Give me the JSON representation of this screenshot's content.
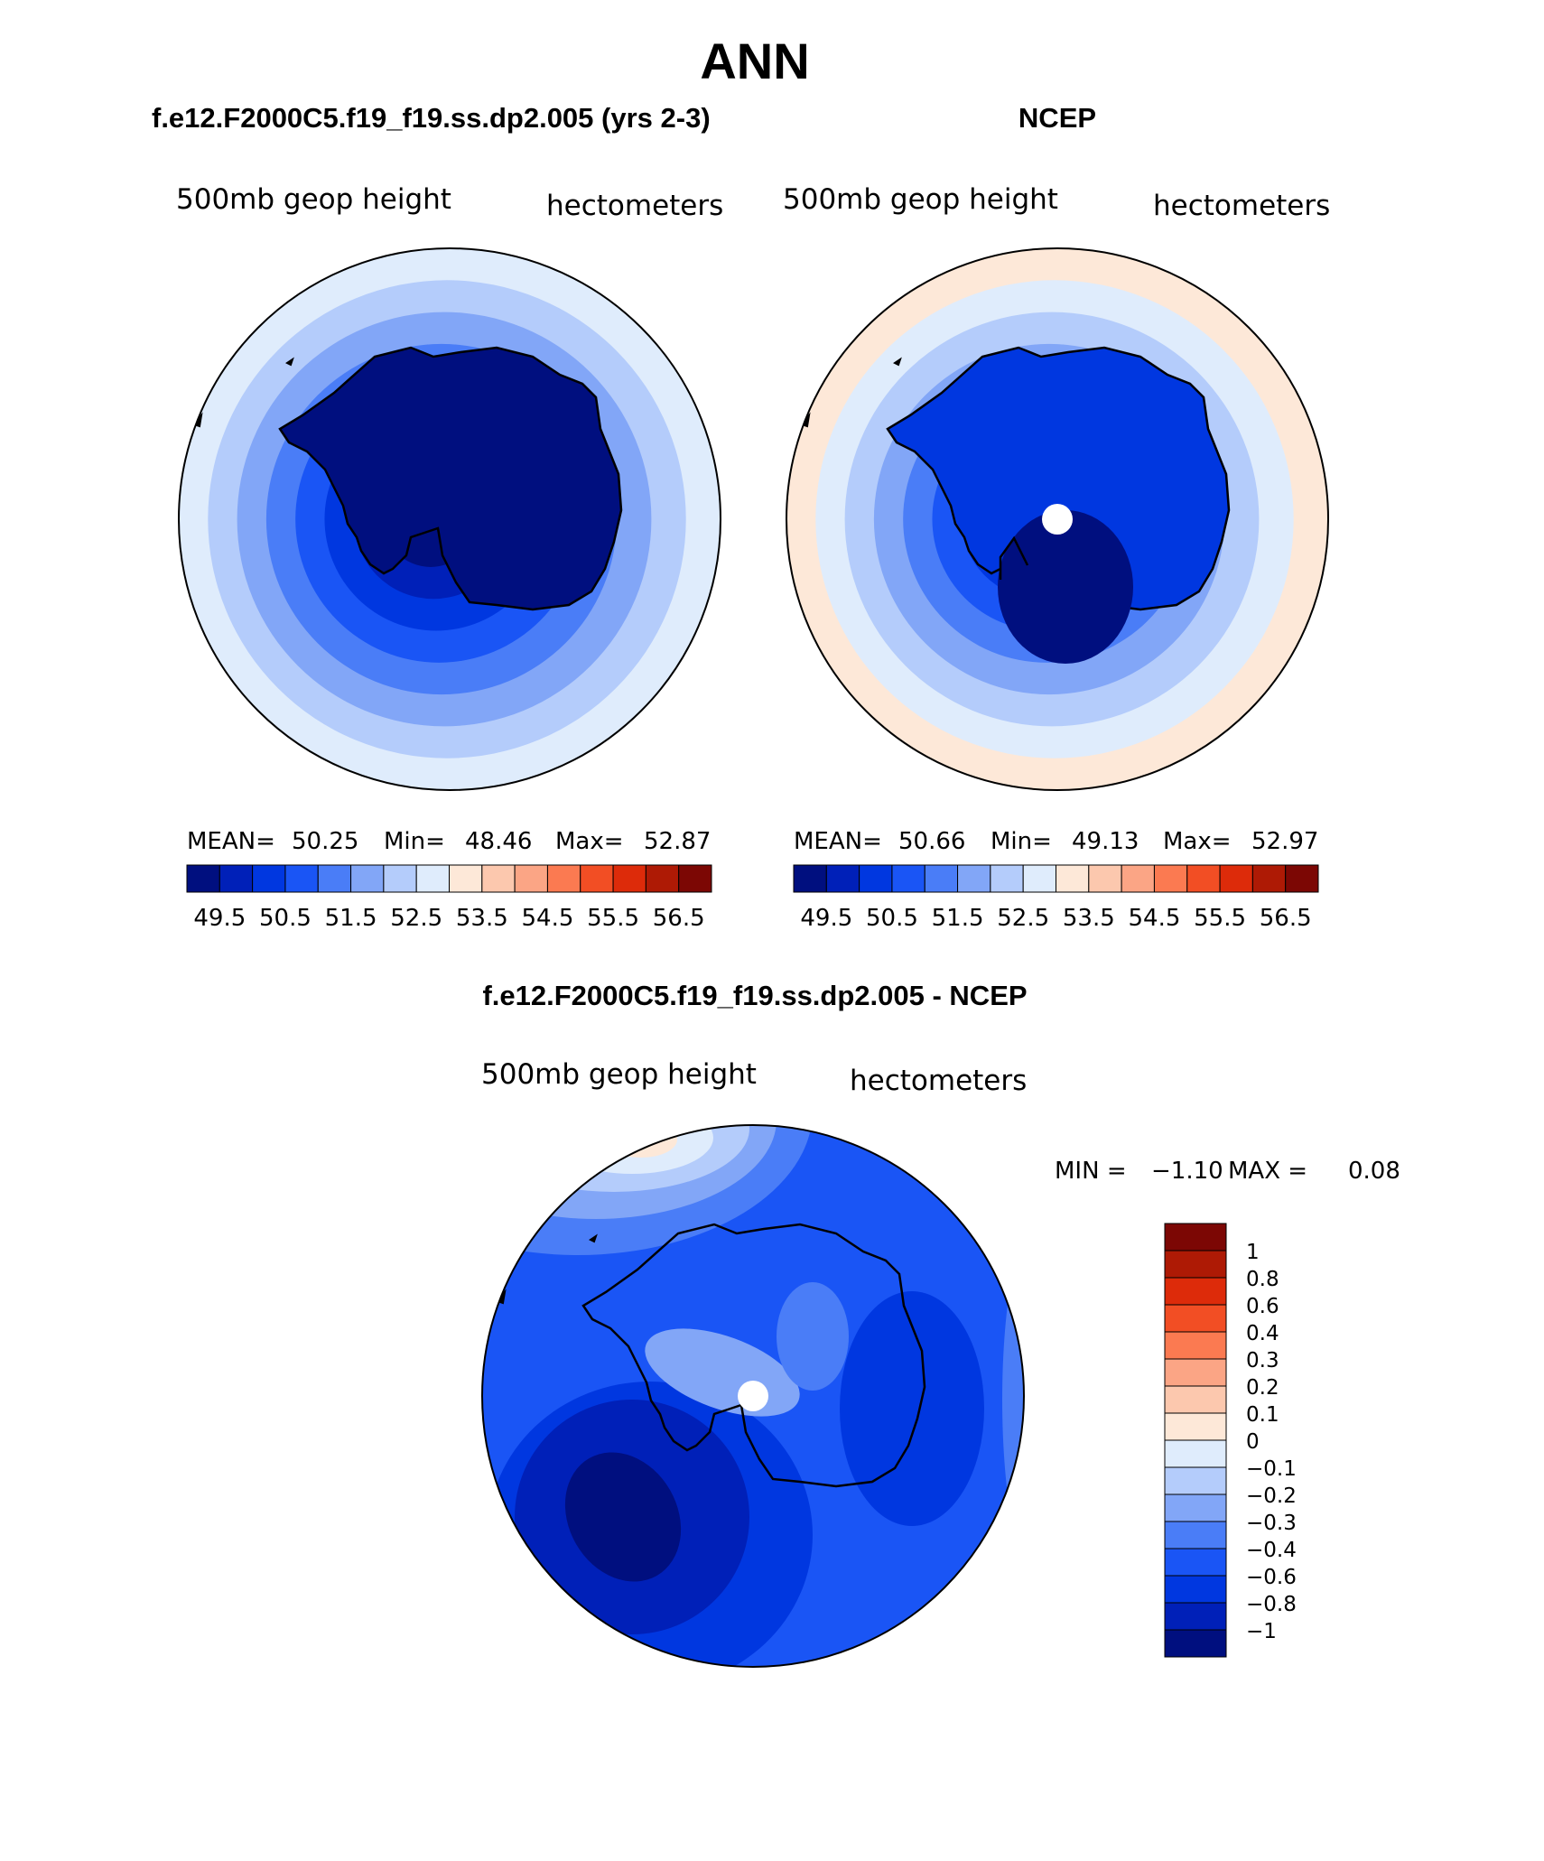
{
  "page": {
    "title": "ANN"
  },
  "panels": [
    {
      "title": "f.e12.F2000C5.f19_f19.ss.dp2.005 (yrs 2-3)",
      "field_label": "500mb geop height",
      "units_label": "hectometers",
      "stats": {
        "mean_label": "MEAN=",
        "mean": "50.25",
        "min_label": "Min=",
        "min": "48.46",
        "max_label": "Max=",
        "max": "52.87"
      },
      "has_pole_hole": false,
      "ring_levels": [
        7,
        6,
        5,
        4,
        3,
        2,
        1,
        0
      ]
    },
    {
      "title": "NCEP",
      "field_label": "500mb geop height",
      "units_label": "hectometers",
      "stats": {
        "mean_label": "MEAN=",
        "mean": "50.66",
        "min_label": "Min=",
        "min": "49.13",
        "max_label": "Max=",
        "max": "52.97"
      },
      "has_pole_hole": true,
      "ring_levels": [
        8,
        7,
        6,
        5,
        4,
        3,
        2,
        1
      ]
    }
  ],
  "abs_colorbar": {
    "colors": [
      "#000f7f",
      "#0020b8",
      "#0037e0",
      "#1a55f5",
      "#4a7df7",
      "#82a6f7",
      "#b4ccfb",
      "#dfecfc",
      "#fde8d8",
      "#fcc8ae",
      "#fba585",
      "#fb7a51",
      "#f24e24",
      "#dd2b0a",
      "#ae1a05",
      "#7c0704"
    ],
    "tick_labels": [
      "49.5",
      "50.5",
      "51.5",
      "52.5",
      "53.5",
      "54.5",
      "55.5",
      "56.5"
    ]
  },
  "diff_panel": {
    "title": "f.e12.F2000C5.f19_f19.ss.dp2.005 - NCEP",
    "field_label": "500mb geop height",
    "units_label": "hectometers",
    "min_max": {
      "min_label": "MIN =",
      "min": "−1.10",
      "max_label": "MAX =",
      "max": "0.08"
    },
    "colorbar": {
      "colors_top_to_bottom": [
        "#7c0704",
        "#ae1a05",
        "#dd2b0a",
        "#f24e24",
        "#fb7a51",
        "#fba585",
        "#fcc8ae",
        "#fde8d8",
        "#dfecfc",
        "#b4ccfb",
        "#82a6f7",
        "#4a7df7",
        "#1a55f5",
        "#0037e0",
        "#0020b8",
        "#000f7f"
      ],
      "tick_labels_top_to_bottom": [
        "1",
        "0.8",
        "0.6",
        "0.4",
        "0.3",
        "0.2",
        "0.1",
        "0",
        "−0.1",
        "−0.2",
        "−0.3",
        "−0.4",
        "−0.6",
        "−0.8",
        "−1"
      ]
    }
  },
  "colors": {
    "coast": "#000000",
    "hole": "#ffffff"
  }
}
